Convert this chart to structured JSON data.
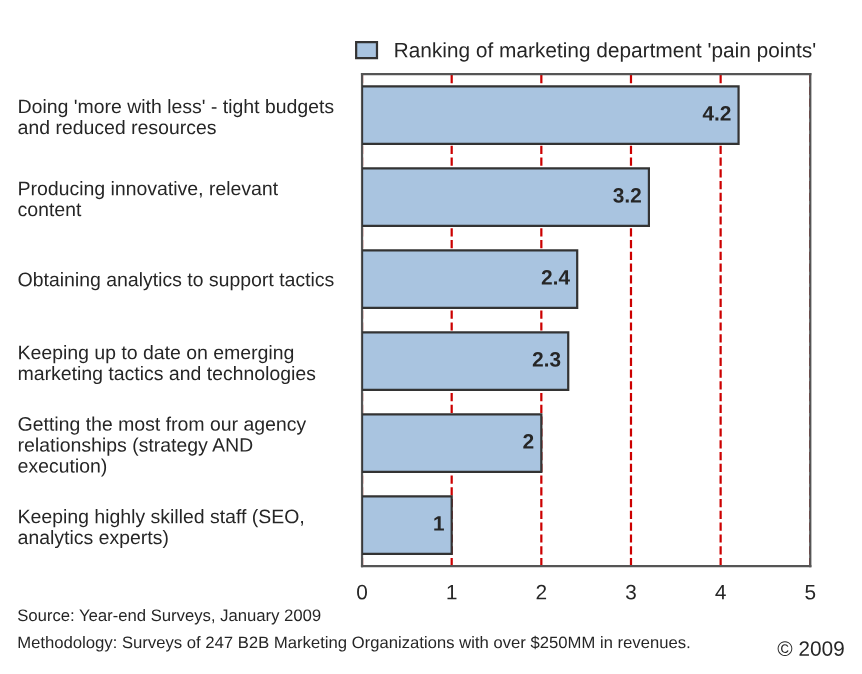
{
  "chart_data": {
    "type": "bar",
    "orientation": "horizontal",
    "categories": [
      "Doing 'more with less' - tight budgets\nand reduced resources",
      "Producing innovative, relevant\ncontent",
      "Obtaining analytics to support tactics",
      "Keeping up to date on emerging\nmarketing tactics and technologies",
      "Getting the most from our agency\nrelationships (strategy AND\nexecution)",
      "Keeping highly skilled staff (SEO,\nanalytics experts)"
    ],
    "series": [
      {
        "name": "Ranking of marketing department 'pain points'",
        "color": "#a9c4e0",
        "values": [
          4.2,
          3.2,
          2.4,
          2.3,
          2,
          1
        ]
      }
    ],
    "xlim": [
      0,
      5
    ],
    "xticks": [
      0,
      1,
      2,
      3,
      4,
      5
    ],
    "grid": "x",
    "legend": "top",
    "data_labels": true,
    "annotations": [
      "Source: Year-end Surveys, January 2009",
      "Methodology: Surveys of 247 B2B Marketing Organizations with over $250MM in revenues.",
      "© 2009"
    ]
  }
}
